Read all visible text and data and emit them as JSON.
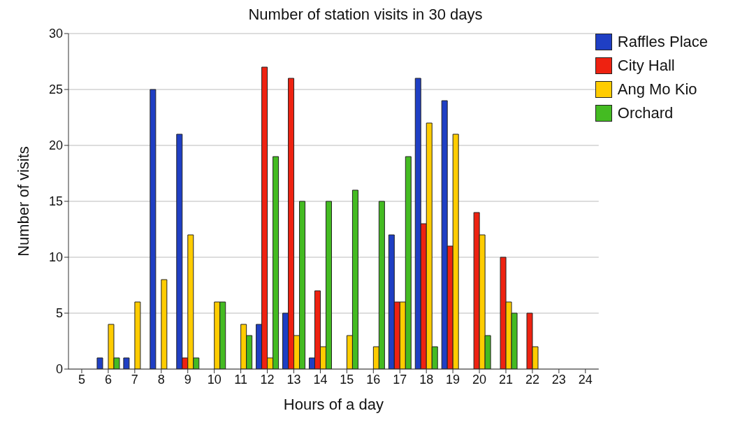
{
  "chart_data": {
    "type": "bar",
    "title": "Number of station visits in 30 days",
    "xlabel": "Hours of a day",
    "ylabel": "Number of visits",
    "categories": [
      "5",
      "6",
      "7",
      "8",
      "9",
      "10",
      "11",
      "12",
      "13",
      "14",
      "15",
      "16",
      "17",
      "18",
      "19",
      "20",
      "21",
      "22",
      "23",
      "24"
    ],
    "series": [
      {
        "name": "Raffles Place",
        "color": "#1f3fc4",
        "values": [
          0,
          1,
          1,
          25,
          21,
          0,
          0,
          4,
          5,
          1,
          0,
          0,
          12,
          26,
          24,
          0,
          0,
          0,
          0,
          0
        ]
      },
      {
        "name": "City Hall",
        "color": "#ee2211",
        "values": [
          0,
          0,
          0,
          0,
          1,
          0,
          0,
          27,
          26,
          7,
          0,
          0,
          6,
          13,
          11,
          14,
          10,
          5,
          0,
          0
        ]
      },
      {
        "name": "Ang Mo Kio",
        "color": "#ffcc00",
        "values": [
          0,
          4,
          6,
          8,
          12,
          6,
          4,
          1,
          3,
          2,
          3,
          2,
          6,
          22,
          21,
          12,
          6,
          2,
          0,
          0
        ]
      },
      {
        "name": "Orchard",
        "color": "#44bb22",
        "values": [
          0,
          1,
          0,
          0,
          1,
          6,
          3,
          19,
          15,
          15,
          16,
          15,
          19,
          2,
          0,
          3,
          5,
          0,
          0,
          0
        ]
      }
    ],
    "ylim": [
      0,
      30
    ],
    "yticks": [
      0,
      5,
      10,
      15,
      20,
      25,
      30
    ],
    "grid": "y",
    "legend": "top right"
  }
}
